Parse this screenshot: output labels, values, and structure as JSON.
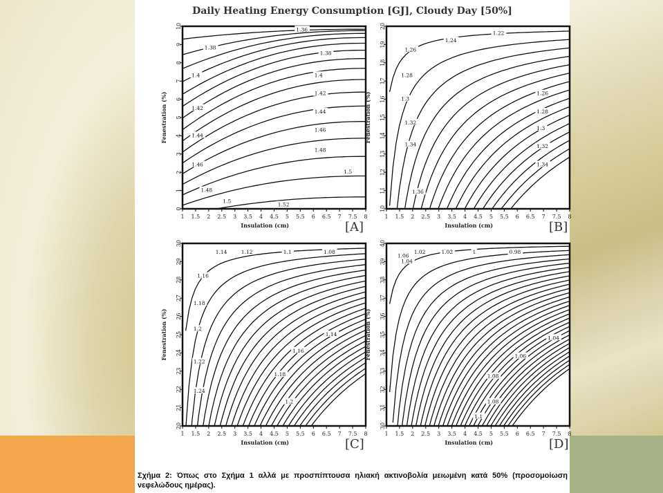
{
  "colors": {
    "orange_block": "#f2a54a",
    "green_block": "#a6b286",
    "contour_line": "#111111"
  },
  "figure_title": "Daily Heating Energy Consumption [GJ], Cloudy Day [50%]",
  "caption": "Σχήμα 2: Όπως στο Σχήμα 1 αλλά με προσπίπτουσα ηλιακή ακτινοβολία μειωμένη κατά 50% (προσομοίωση νεφελώδους ημέρας).",
  "chart_data": [
    {
      "type": "contour",
      "panel": "[A]",
      "xlabel": "Insulation (cm)",
      "ylabel": "Fenestration (%)",
      "xticks": [
        "1",
        "1.5",
        "2",
        "2.5",
        "3",
        "3.5",
        "4",
        "4.5",
        "5",
        "5.5",
        "6",
        "6.5",
        "7",
        "7.5",
        "8"
      ],
      "yticks": [
        "0",
        "1",
        "2",
        "3",
        "4",
        "5",
        "6",
        "7",
        "8",
        "9",
        "10"
      ],
      "xlim": [
        1,
        8
      ],
      "ylim": [
        0,
        10
      ],
      "contour_labels": [
        "1.36",
        "1.38",
        "1.38",
        "1.4",
        "1.4",
        "1.42",
        "1.42",
        "1.44",
        "1.44",
        "1.46",
        "1.46",
        "1.48",
        "1.48",
        "1.5",
        "1.5",
        "1.52"
      ],
      "contour_levels": [
        1.36,
        1.38,
        1.4,
        1.42,
        1.44,
        1.46,
        1.48,
        1.5,
        1.52
      ]
    },
    {
      "type": "contour",
      "panel": "[B]",
      "xlabel": "Insulation (cm)",
      "ylabel": "Fenestration (%)",
      "xticks": [
        "1",
        "1.5",
        "2",
        "2.5",
        "3",
        "3.5",
        "4",
        "4.5",
        "5",
        "5.5",
        "6",
        "6.5",
        "7",
        "7.5",
        "8"
      ],
      "yticks": [
        "10",
        "11",
        "12",
        "13",
        "14",
        "15",
        "16",
        "17",
        "18",
        "19",
        "20"
      ],
      "xlim": [
        1,
        8
      ],
      "ylim": [
        10,
        20
      ],
      "contour_labels": [
        "1.22",
        "1.24",
        "1.26",
        "1.26",
        "1.28",
        "1.28",
        "1.3",
        "1.3",
        "1.32",
        "1.32",
        "1.34",
        "1.34",
        "1.36"
      ],
      "contour_levels": [
        1.22,
        1.24,
        1.26,
        1.28,
        1.3,
        1.32,
        1.34,
        1.36
      ]
    },
    {
      "type": "contour",
      "panel": "[C]",
      "xlabel": "Insulation (cm)",
      "ylabel": "Fenestration (%)",
      "xticks": [
        "1",
        "1.5",
        "2",
        "2.5",
        "3",
        "3.5",
        "4",
        "4.5",
        "5",
        "5.5",
        "6",
        "6.5",
        "7",
        "7.5",
        "8"
      ],
      "yticks": [
        "20",
        "21",
        "22",
        "23",
        "24",
        "25",
        "26",
        "27",
        "28",
        "29",
        "30"
      ],
      "xlim": [
        1,
        8
      ],
      "ylim": [
        20,
        30
      ],
      "contour_labels": [
        "1.08",
        "1.1",
        "1.12",
        "1.14",
        "1.16",
        "1.18",
        "1.2",
        "1.22",
        "1.24",
        "1.14",
        "1.16",
        "1.18",
        "1.2"
      ],
      "contour_levels": [
        1.08,
        1.1,
        1.12,
        1.14,
        1.16,
        1.18,
        1.2,
        1.22,
        1.24
      ]
    },
    {
      "type": "contour",
      "panel": "[D]",
      "xlabel": "Insulation (cm)",
      "ylabel": "Fenestration (%)",
      "xticks": [
        "1",
        "1.5",
        "2",
        "2.5",
        "3",
        "3.5",
        "4",
        "4.5",
        "5",
        "5.5",
        "6",
        "6.5",
        "7",
        "7.5",
        "8"
      ],
      "yticks": [
        "30",
        "31",
        "32",
        "33",
        "34",
        "35",
        "36",
        "37",
        "38",
        "39",
        "40"
      ],
      "xlim": [
        1,
        8
      ],
      "ylim": [
        30,
        40
      ],
      "contour_labels": [
        "0.98",
        "1",
        "1.02",
        "1.04",
        "1.06",
        "1.08",
        "1.02",
        "1.04",
        "1.06",
        "1.08",
        "1.1"
      ],
      "contour_levels": [
        0.98,
        1.0,
        1.02,
        1.04,
        1.06,
        1.08,
        1.1
      ]
    }
  ]
}
